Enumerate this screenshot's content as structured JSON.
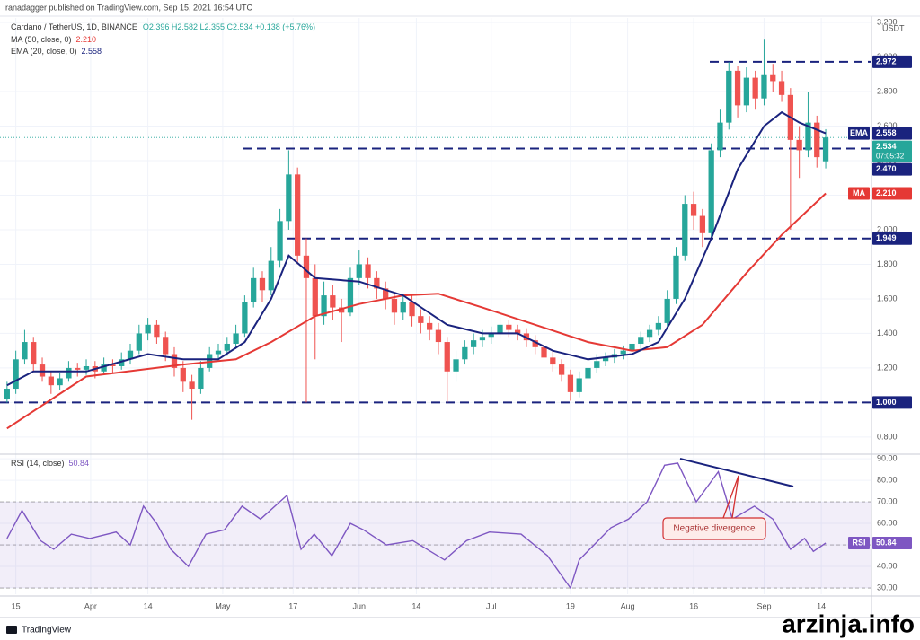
{
  "chart_data": {
    "type": "candlestick",
    "publisher": "ranadagger published on TradingView.com, Sep 15, 2021 16:54 UTC",
    "title": "Cardano / TetherUS, 1D, BINANCE",
    "ohlc_legend": "O2.396 H2.582 L2.355 C2.534 +0.138 (+5.76%)",
    "currency": "USDT",
    "up_color": "#26a69a",
    "down_color": "#ef5350",
    "candles": [
      [
        1.02,
        1.12,
        1.0,
        1.08
      ],
      [
        1.08,
        1.3,
        1.05,
        1.25
      ],
      [
        1.25,
        1.42,
        1.22,
        1.35
      ],
      [
        1.35,
        1.38,
        1.18,
        1.22
      ],
      [
        1.22,
        1.26,
        1.12,
        1.15
      ],
      [
        1.15,
        1.18,
        1.05,
        1.1
      ],
      [
        1.1,
        1.17,
        1.07,
        1.14
      ],
      [
        1.14,
        1.24,
        1.12,
        1.2
      ],
      [
        1.2,
        1.23,
        1.15,
        1.19
      ],
      [
        1.19,
        1.25,
        1.16,
        1.21
      ],
      [
        1.21,
        1.24,
        1.14,
        1.18
      ],
      [
        1.18,
        1.26,
        1.16,
        1.22
      ],
      [
        1.22,
        1.25,
        1.17,
        1.21
      ],
      [
        1.21,
        1.29,
        1.19,
        1.25
      ],
      [
        1.25,
        1.34,
        1.22,
        1.3
      ],
      [
        1.3,
        1.45,
        1.28,
        1.4
      ],
      [
        1.4,
        1.49,
        1.36,
        1.45
      ],
      [
        1.45,
        1.48,
        1.34,
        1.38
      ],
      [
        1.38,
        1.41,
        1.24,
        1.28
      ],
      [
        1.28,
        1.32,
        1.15,
        1.2
      ],
      [
        1.2,
        1.24,
        1.06,
        1.12
      ],
      [
        1.12,
        1.16,
        0.9,
        1.08
      ],
      [
        1.08,
        1.24,
        1.05,
        1.2
      ],
      [
        1.2,
        1.32,
        1.18,
        1.28
      ],
      [
        1.28,
        1.34,
        1.25,
        1.3
      ],
      [
        1.3,
        1.38,
        1.27,
        1.34
      ],
      [
        1.34,
        1.45,
        1.31,
        1.4
      ],
      [
        1.4,
        1.62,
        1.38,
        1.58
      ],
      [
        1.58,
        1.78,
        1.55,
        1.72
      ],
      [
        1.72,
        1.76,
        1.58,
        1.65
      ],
      [
        1.65,
        1.9,
        1.62,
        1.82
      ],
      [
        1.82,
        2.12,
        1.78,
        2.05
      ],
      [
        2.05,
        2.46,
        2.0,
        2.32
      ],
      [
        2.32,
        2.36,
        1.8,
        1.85
      ],
      [
        1.85,
        1.95,
        1.0,
        1.72
      ],
      [
        1.72,
        1.8,
        1.25,
        1.5
      ],
      [
        1.5,
        1.7,
        1.45,
        1.62
      ],
      [
        1.62,
        1.68,
        1.48,
        1.55
      ],
      [
        1.55,
        1.6,
        1.35,
        1.52
      ],
      [
        1.52,
        1.78,
        1.5,
        1.72
      ],
      [
        1.72,
        1.88,
        1.68,
        1.8
      ],
      [
        1.8,
        1.84,
        1.66,
        1.72
      ],
      [
        1.72,
        1.76,
        1.6,
        1.66
      ],
      [
        1.66,
        1.7,
        1.54,
        1.6
      ],
      [
        1.6,
        1.64,
        1.45,
        1.52
      ],
      [
        1.52,
        1.63,
        1.48,
        1.58
      ],
      [
        1.58,
        1.62,
        1.44,
        1.5
      ],
      [
        1.5,
        1.54,
        1.4,
        1.46
      ],
      [
        1.46,
        1.5,
        1.36,
        1.42
      ],
      [
        1.42,
        1.46,
        1.28,
        1.35
      ],
      [
        1.35,
        1.38,
        1.0,
        1.18
      ],
      [
        1.18,
        1.3,
        1.12,
        1.25
      ],
      [
        1.25,
        1.36,
        1.22,
        1.32
      ],
      [
        1.32,
        1.4,
        1.28,
        1.36
      ],
      [
        1.36,
        1.42,
        1.32,
        1.38
      ],
      [
        1.38,
        1.44,
        1.34,
        1.4
      ],
      [
        1.4,
        1.49,
        1.37,
        1.45
      ],
      [
        1.45,
        1.48,
        1.38,
        1.42
      ],
      [
        1.42,
        1.45,
        1.36,
        1.4
      ],
      [
        1.4,
        1.43,
        1.32,
        1.36
      ],
      [
        1.36,
        1.39,
        1.28,
        1.32
      ],
      [
        1.32,
        1.35,
        1.22,
        1.26
      ],
      [
        1.26,
        1.3,
        1.18,
        1.22
      ],
      [
        1.22,
        1.25,
        1.12,
        1.16
      ],
      [
        1.16,
        1.19,
        1.01,
        1.06
      ],
      [
        1.06,
        1.18,
        1.03,
        1.14
      ],
      [
        1.14,
        1.24,
        1.11,
        1.2
      ],
      [
        1.2,
        1.28,
        1.17,
        1.24
      ],
      [
        1.24,
        1.29,
        1.21,
        1.26
      ],
      [
        1.26,
        1.31,
        1.23,
        1.28
      ],
      [
        1.28,
        1.33,
        1.25,
        1.3
      ],
      [
        1.3,
        1.37,
        1.27,
        1.34
      ],
      [
        1.34,
        1.41,
        1.31,
        1.38
      ],
      [
        1.38,
        1.45,
        1.35,
        1.42
      ],
      [
        1.42,
        1.5,
        1.39,
        1.46
      ],
      [
        1.46,
        1.65,
        1.44,
        1.6
      ],
      [
        1.6,
        1.9,
        1.57,
        1.85
      ],
      [
        1.85,
        2.2,
        1.82,
        2.15
      ],
      [
        2.15,
        2.22,
        2.0,
        2.08
      ],
      [
        2.08,
        2.12,
        1.9,
        1.98
      ],
      [
        1.98,
        2.5,
        1.95,
        2.46
      ],
      [
        2.46,
        2.7,
        2.42,
        2.62
      ],
      [
        2.62,
        2.97,
        2.58,
        2.92
      ],
      [
        2.92,
        2.95,
        2.65,
        2.72
      ],
      [
        2.72,
        2.94,
        2.68,
        2.88
      ],
      [
        2.88,
        2.92,
        2.7,
        2.76
      ],
      [
        2.76,
        3.1,
        2.72,
        2.9
      ],
      [
        2.9,
        2.96,
        2.8,
        2.86
      ],
      [
        2.86,
        2.92,
        2.74,
        2.78
      ],
      [
        2.78,
        2.82,
        2.0,
        2.52
      ],
      [
        2.52,
        2.6,
        2.3,
        2.46
      ],
      [
        2.46,
        2.8,
        2.42,
        2.62
      ],
      [
        2.62,
        2.66,
        2.36,
        2.42
      ],
      [
        2.396,
        2.582,
        2.355,
        2.534
      ]
    ],
    "last_price": {
      "value": 2.534,
      "label": "2.534",
      "countdown": "07:05:32"
    },
    "overlays": [
      {
        "name": "MA (50, close, 0)",
        "short": "MA",
        "color": "#e53935",
        "last_label": "2.210",
        "x": [
          0,
          9,
          20,
          26,
          30,
          35,
          40,
          45,
          49,
          54,
          60,
          66,
          71,
          75,
          79,
          84,
          88,
          93
        ],
        "values": [
          0.85,
          1.15,
          1.22,
          1.25,
          1.35,
          1.5,
          1.57,
          1.62,
          1.63,
          1.55,
          1.45,
          1.35,
          1.3,
          1.32,
          1.45,
          1.75,
          1.97,
          2.21
        ]
      },
      {
        "name": "EMA (20, close, 0)",
        "short": "EMA",
        "color": "#1a237e",
        "last_label": "2.558",
        "x": [
          0,
          3,
          9,
          16,
          20,
          24,
          27,
          30,
          32,
          35,
          40,
          45,
          50,
          54,
          58,
          62,
          66,
          71,
          74,
          77,
          80,
          83,
          86,
          88,
          90,
          93
        ],
        "values": [
          1.1,
          1.18,
          1.18,
          1.28,
          1.25,
          1.25,
          1.35,
          1.6,
          1.85,
          1.72,
          1.7,
          1.62,
          1.45,
          1.4,
          1.4,
          1.3,
          1.25,
          1.28,
          1.35,
          1.6,
          1.95,
          2.35,
          2.6,
          2.68,
          2.62,
          2.558
        ]
      }
    ],
    "levels": [
      {
        "value": 2.972,
        "label": "2.972"
      },
      {
        "value": 2.47,
        "label": "2.470"
      },
      {
        "value": 1.949,
        "label": "1.949"
      },
      {
        "value": 1.0,
        "label": "1.000"
      }
    ],
    "level_color": "#1a237e",
    "xlim": [
      -0.8,
      98.2
    ],
    "xticks": [
      {
        "value": 1,
        "label": "15"
      },
      {
        "value": 9.5,
        "label": "Apr"
      },
      {
        "value": 16,
        "label": "14"
      },
      {
        "value": 24.5,
        "label": "May"
      },
      {
        "value": 32.5,
        "label": "17"
      },
      {
        "value": 40,
        "label": "Jun"
      },
      {
        "value": 46.5,
        "label": "14"
      },
      {
        "value": 55,
        "label": "Jul"
      },
      {
        "value": 64,
        "label": "19"
      },
      {
        "value": 70.5,
        "label": "Aug"
      },
      {
        "value": 78,
        "label": "16"
      },
      {
        "value": 86,
        "label": "Sep"
      },
      {
        "value": 92.5,
        "label": "14"
      }
    ],
    "ylim": [
      0.706,
      3.226
    ],
    "yticks": [
      {
        "value": 0.8,
        "label": "0.800"
      },
      {
        "value": 1.0,
        "label": "1.000"
      },
      {
        "value": 1.2,
        "label": "1.200"
      },
      {
        "value": 1.4,
        "label": "1.400"
      },
      {
        "value": 1.6,
        "label": "1.600"
      },
      {
        "value": 1.8,
        "label": "1.800"
      },
      {
        "value": 2.0,
        "label": "2.000"
      },
      {
        "value": 2.2,
        "label": "2.200"
      },
      {
        "value": 2.4,
        "label": "2.400"
      },
      {
        "value": 2.6,
        "label": "2.600"
      },
      {
        "value": 2.8,
        "label": "2.800"
      },
      {
        "value": 3.0,
        "label": "3.000"
      },
      {
        "value": 3.2,
        "label": "3.200"
      }
    ],
    "grid": true,
    "rsi": {
      "type": "line",
      "title": "RSI (14, close)",
      "short": "RSI",
      "color": "#7e57c2",
      "x": [
        0,
        1.7,
        3.8,
        5.3,
        7.3,
        9.4,
        12.4,
        14,
        15.5,
        17,
        18.6,
        20.6,
        22.6,
        24.7,
        26.7,
        28.8,
        31.8,
        33.4,
        34.9,
        36.9,
        39,
        40.5,
        43.1,
        46.1,
        49.7,
        52.2,
        54.8,
        58.4,
        61.4,
        64,
        65,
        68.6,
        70.6,
        72.7,
        74.7,
        76.2,
        78.3,
        80.8,
        82.4,
        84.9,
        87,
        89,
        90.6,
        91.6,
        93
      ],
      "values": [
        53,
        66,
        52,
        48,
        55,
        53,
        56,
        50,
        68,
        60,
        48,
        40,
        55,
        57,
        68,
        62,
        73,
        48,
        55,
        45,
        60,
        57,
        50,
        52,
        43,
        52,
        56,
        55,
        45,
        30,
        43,
        58,
        62,
        70,
        87,
        88,
        70,
        84,
        62,
        68,
        62,
        48,
        53,
        47,
        50.84
      ],
      "ylim": [
        27.1,
        91.7
      ],
      "yticks": [
        {
          "value": 30,
          "label": "30.00"
        },
        {
          "value": 40,
          "label": "40.00"
        },
        {
          "value": 50,
          "label": "50.00"
        },
        {
          "value": 60,
          "label": "60.00"
        },
        {
          "value": 70,
          "label": "70.00"
        },
        {
          "value": 80,
          "label": "80.00"
        },
        {
          "value": 90,
          "label": "90.00"
        }
      ],
      "band": [
        30,
        70
      ],
      "annotation": "Negative divergence"
    }
  },
  "branding": {
    "logo_text": "TradingView",
    "watermark": "arzinja.info"
  }
}
